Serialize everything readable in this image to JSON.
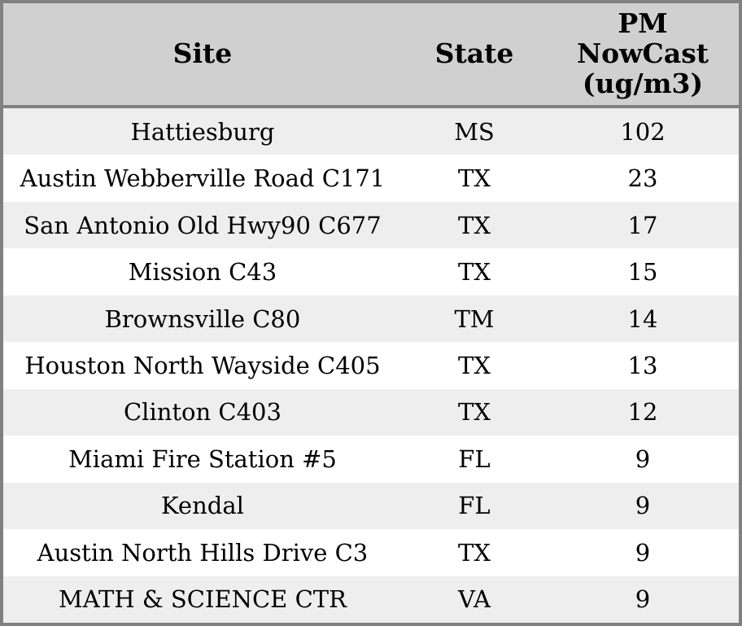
{
  "chart_data": {
    "type": "table",
    "title": "",
    "columns": [
      "Site",
      "State",
      "PM NowCast (ug/m3)"
    ],
    "rows": [
      [
        "Hattiesburg",
        "MS",
        102
      ],
      [
        "Austin Webberville Road C171",
        "TX",
        23
      ],
      [
        "San Antonio Old Hwy90 C677",
        "TX",
        17
      ],
      [
        "Mission C43",
        "TX",
        15
      ],
      [
        "Brownsville C80",
        "TM",
        14
      ],
      [
        "Houston North Wayside C405",
        "TX",
        13
      ],
      [
        "Clinton C403",
        "TX",
        12
      ],
      [
        "Miami Fire Station #5",
        "FL",
        9
      ],
      [
        "Kendal",
        "FL",
        9
      ],
      [
        "Austin North Hills Drive C3",
        "TX",
        9
      ],
      [
        "MATH & SCIENCE CTR",
        "VA",
        9
      ]
    ],
    "layout_hints": {
      "header_background": "#d0d0d0",
      "alternating_row_backgrounds": [
        "#eeeeee",
        "#ffffff"
      ],
      "border_color": "#808080",
      "text_align": "center"
    }
  },
  "table": {
    "headers": [
      {
        "key": "site",
        "label": "Site"
      },
      {
        "key": "state",
        "label": "State"
      },
      {
        "key": "pm",
        "label": "PM\nNowCast\n(ug/m3)"
      }
    ],
    "rows": [
      {
        "site": "Hattiesburg",
        "state": "MS",
        "pm": "102"
      },
      {
        "site": "Austin Webberville Road C171",
        "state": "TX",
        "pm": "23"
      },
      {
        "site": "San Antonio Old Hwy90 C677",
        "state": "TX",
        "pm": "17"
      },
      {
        "site": "Mission C43",
        "state": "TX",
        "pm": "15"
      },
      {
        "site": "Brownsville C80",
        "state": "TM",
        "pm": "14"
      },
      {
        "site": "Houston North Wayside C405",
        "state": "TX",
        "pm": "13"
      },
      {
        "site": "Clinton C403",
        "state": "TX",
        "pm": "12"
      },
      {
        "site": "Miami Fire Station #5",
        "state": "FL",
        "pm": "9"
      },
      {
        "site": "Kendal",
        "state": "FL",
        "pm": "9"
      },
      {
        "site": "Austin North Hills Drive C3",
        "state": "TX",
        "pm": "9"
      },
      {
        "site": "MATH & SCIENCE CTR",
        "state": "VA",
        "pm": "9"
      }
    ]
  },
  "colors": {
    "header_bg": "#d0d0d0",
    "row_alt_bg": "#eeeeee",
    "row_bg": "#ffffff",
    "border": "#808080",
    "text": "#000000"
  }
}
